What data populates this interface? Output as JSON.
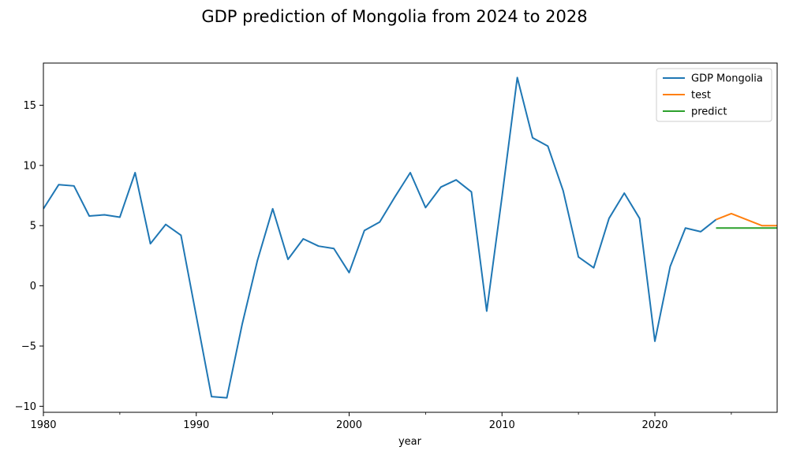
{
  "chart_data": {
    "type": "line",
    "title": "GDP prediction of Mongolia from 2024 to 2028",
    "xlabel": "year",
    "ylabel": "",
    "xlim": [
      1980,
      2028
    ],
    "ylim": [
      -10.5,
      18.5
    ],
    "x_major_ticks": [
      1980,
      1990,
      2000,
      2010,
      2020
    ],
    "x_major_tick_labels": [
      "1980",
      "1990",
      "2000",
      "2010",
      "2020"
    ],
    "x_minor_ticks": [
      1985,
      1995,
      2005,
      2015,
      2025
    ],
    "y_ticks": [
      -10,
      -5,
      0,
      5,
      10,
      15
    ],
    "y_tick_labels": [
      "−10",
      "−5",
      "0",
      "5",
      "10",
      "15"
    ],
    "grid": false,
    "legend_position": "top-right",
    "series": [
      {
        "name": "GDP Mongolia",
        "color": "#1f77b4",
        "x": [
          1980,
          1981,
          1982,
          1983,
          1984,
          1985,
          1986,
          1987,
          1988,
          1989,
          1990,
          1991,
          1992,
          1993,
          1994,
          1995,
          1996,
          1997,
          1998,
          1999,
          2000,
          2001,
          2002,
          2003,
          2004,
          2005,
          2006,
          2007,
          2008,
          2009,
          2010,
          2011,
          2012,
          2013,
          2014,
          2015,
          2016,
          2017,
          2018,
          2019,
          2020,
          2021,
          2022,
          2023,
          2024
        ],
        "y": [
          6.4,
          8.4,
          8.3,
          5.8,
          5.9,
          5.7,
          9.4,
          3.5,
          5.1,
          4.2,
          -2.5,
          -9.2,
          -9.3,
          -3.2,
          2.1,
          6.4,
          2.2,
          3.9,
          3.3,
          3.1,
          1.1,
          4.6,
          5.3,
          7.4,
          9.4,
          6.5,
          8.2,
          8.8,
          7.8,
          -2.1,
          7.4,
          17.3,
          12.3,
          11.6,
          7.9,
          2.4,
          1.5,
          5.6,
          7.7,
          5.6,
          -4.6,
          1.6,
          4.8,
          4.5,
          5.5
        ]
      },
      {
        "name": "test",
        "color": "#ff7f0e",
        "x": [
          2024,
          2025,
          2026,
          2027,
          2028
        ],
        "y": [
          5.5,
          6.0,
          5.5,
          5.0,
          5.0
        ]
      },
      {
        "name": "predict",
        "color": "#2ca02c",
        "x": [
          2024,
          2025,
          2026,
          2027,
          2028
        ],
        "y": [
          4.8,
          4.8,
          4.8,
          4.8,
          4.8
        ]
      }
    ]
  }
}
